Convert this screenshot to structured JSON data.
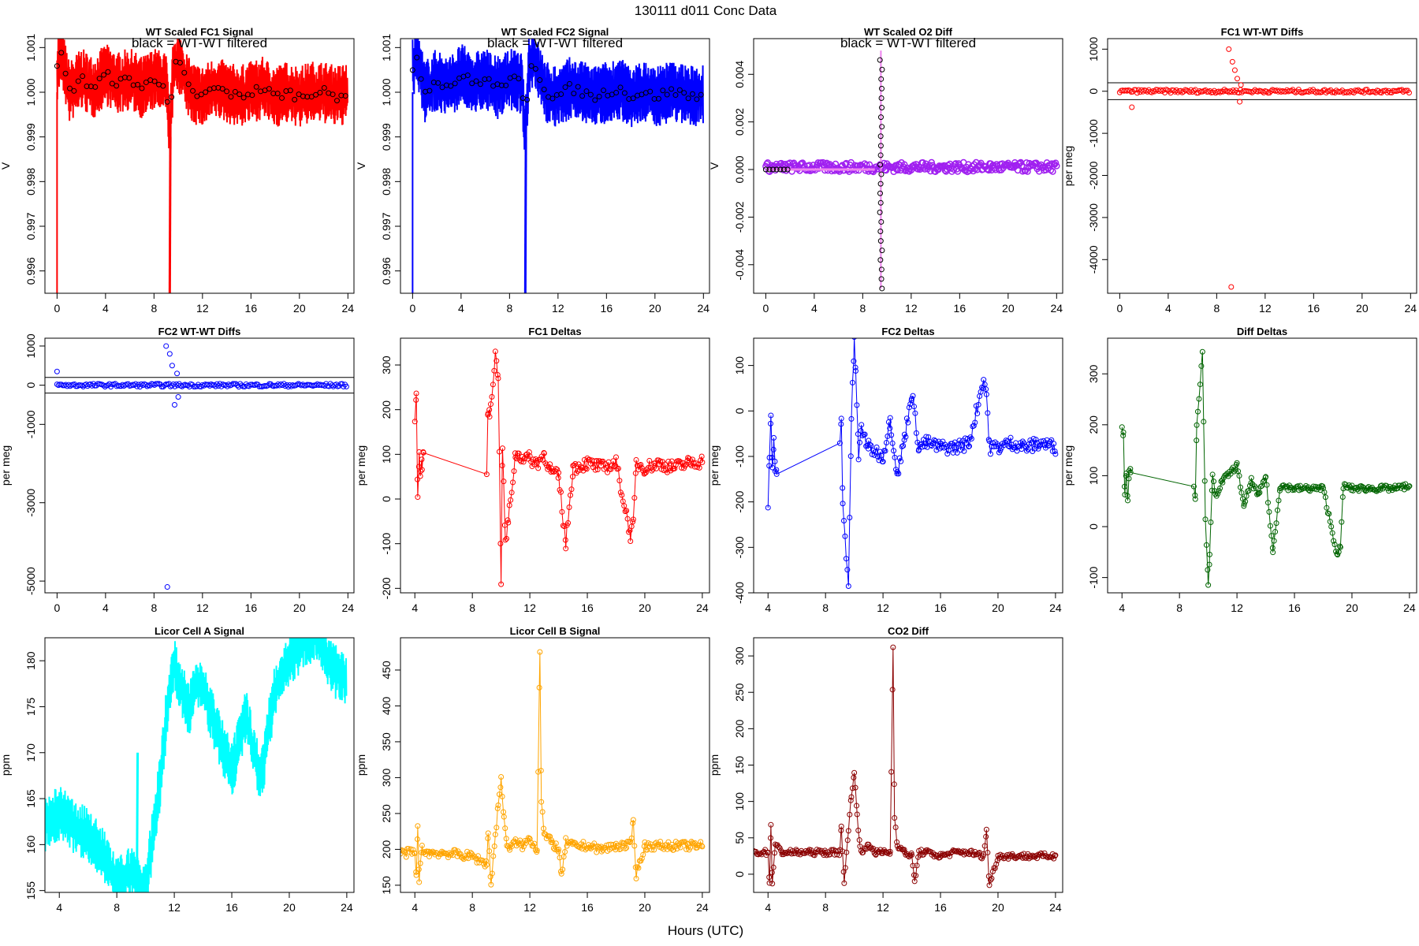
{
  "figure": {
    "main_title": "130111    d011    Conc Data",
    "x_label": "Hours (UTC)"
  },
  "chart_data": [
    {
      "id": "p1",
      "type": "line",
      "title": "WT Scaled FC1 Signal",
      "annotation": "black = WT-WT filtered",
      "ylabel": "V",
      "xlim": [
        -1,
        24.5
      ],
      "ylim": [
        0.9955,
        1.0012
      ],
      "xticks": [
        0,
        4,
        8,
        12,
        16,
        20,
        24
      ],
      "yticks": [
        0.996,
        0.997,
        0.998,
        0.999,
        1.0
      ],
      "ytick_labels": [
        "0.996",
        "0.997",
        "0.998",
        "0.999",
        "1.000"
      ],
      "ytick_extra": [
        1.001
      ],
      "ytick_extra_labels": [
        "1.001"
      ],
      "color": "#ff0000",
      "overlay_color": "#000000",
      "mode": "noise",
      "series": {
        "x": [
          0,
          0.3,
          1,
          2,
          3,
          4,
          5,
          6,
          7,
          8,
          9,
          9.3,
          9.6,
          10,
          11,
          12,
          13,
          14,
          15,
          16,
          17,
          18,
          19,
          20,
          21,
          22,
          23,
          24
        ],
        "y": [
          1.0005,
          1.0009,
          1.0,
          1.0003,
          1.0001,
          1.0004,
          1.0002,
          1.0003,
          1.0001,
          1.0003,
          1.0002,
          0.999,
          1.0006,
          1.0007,
          1.0,
          0.9999,
          1.0001,
          1.0,
          0.9999,
          1.0,
          1.0001,
          0.9999,
          1.0,
          0.9999,
          1.0,
          1.0,
          0.9999,
          1.0
        ],
        "spread": 0.0007,
        "spike_x": 9.3,
        "spike_min": 0.9955
      }
    },
    {
      "id": "p2",
      "type": "line",
      "title": "WT Scaled FC2 Signal",
      "annotation": "black = WT-WT filtered",
      "ylabel": "V",
      "xlim": [
        -1,
        24.5
      ],
      "ylim": [
        0.9955,
        1.0012
      ],
      "xticks": [
        0,
        4,
        8,
        12,
        16,
        20,
        24
      ],
      "yticks": [
        0.996,
        0.997,
        0.998,
        0.999,
        1.0
      ],
      "ytick_labels": [
        "0.996",
        "0.997",
        "0.998",
        "0.999",
        "1.000"
      ],
      "ytick_extra": [
        1.001
      ],
      "ytick_extra_labels": [
        "1.001"
      ],
      "color": "#0000ff",
      "overlay_color": "#000000",
      "mode": "noise",
      "series": {
        "x": [
          0,
          0.3,
          1,
          2,
          3,
          4,
          5,
          6,
          7,
          8,
          9,
          9.3,
          9.6,
          10,
          11,
          12,
          13,
          14,
          15,
          16,
          17,
          18,
          19,
          20,
          21,
          22,
          23,
          24
        ],
        "y": [
          1.0005,
          1.0009,
          1.0,
          1.0003,
          1.0001,
          1.0004,
          1.0002,
          1.0003,
          1.0001,
          1.0003,
          1.0002,
          0.999,
          1.0006,
          1.0007,
          1.0,
          0.9999,
          1.0001,
          1.0,
          0.9999,
          1.0,
          1.0001,
          0.9999,
          1.0,
          0.9999,
          1.0,
          1.0,
          0.9999,
          1.0
        ],
        "spread": 0.0007,
        "spike_x": 9.3,
        "spike_min": 0.9955
      }
    },
    {
      "id": "p3",
      "type": "scatter",
      "title": "WT Scaled O2 Diff",
      "annotation": "black = WT-WT filtered",
      "ylabel": "V",
      "xlim": [
        -1,
        24.5
      ],
      "ylim": [
        -0.0052,
        0.0055
      ],
      "xticks": [
        0,
        4,
        8,
        12,
        16,
        20,
        24
      ],
      "yticks": [
        -0.004,
        -0.002,
        0.0,
        0.002,
        0.004
      ],
      "ytick_labels": [
        "-0.004",
        "-0.002",
        "0.000",
        "0.002",
        "0.004"
      ],
      "color": "#a020f0",
      "overlay_color": "#ee82ee",
      "mode": "band",
      "series": {
        "x": [
          0,
          24
        ],
        "y": [
          0.0001,
          0.0
        ],
        "spread": 0.0002,
        "spike_x": 9.5,
        "spike_min": -0.005,
        "spike_max": 0.005
      }
    },
    {
      "id": "p4",
      "type": "scatter",
      "title": "FC1 WT-WT Diffs",
      "ylabel": "per meg",
      "xlim": [
        -1,
        24.5
      ],
      "ylim": [
        -4800,
        1250
      ],
      "xticks": [
        0,
        4,
        8,
        12,
        16,
        20,
        24
      ],
      "yticks": [
        -4000,
        -3000,
        -2000,
        -1000,
        0,
        1000
      ],
      "ytick_labels": [
        "-4000",
        "-3000",
        "-2000",
        "-1000",
        "0",
        "1000"
      ],
      "color": "#ff0000",
      "mode": "flat",
      "hlines": [
        200,
        -200
      ],
      "series": {
        "center": 0,
        "spread": 40,
        "outliers": [
          [
            1,
            -380
          ],
          [
            9,
            1000
          ],
          [
            9.2,
            -4650
          ],
          [
            9.3,
            700
          ],
          [
            9.5,
            500
          ],
          [
            9.7,
            300
          ],
          [
            9.9,
            -250
          ],
          [
            10,
            150
          ]
        ]
      }
    },
    {
      "id": "p5",
      "type": "scatter",
      "title": "FC2 WT-WT Diffs",
      "ylabel": "per meg",
      "xlim": [
        -1,
        24.5
      ],
      "ylim": [
        -5300,
        1200
      ],
      "xticks": [
        0,
        4,
        8,
        12,
        16,
        20,
        24
      ],
      "yticks": [
        -5000,
        -3000,
        -1000,
        0,
        1000
      ],
      "ytick_labels": [
        "-5000",
        "-3000",
        "-1000",
        "0",
        "1000"
      ],
      "color": "#0000ff",
      "mode": "flat",
      "hlines": [
        200,
        -200
      ],
      "series": {
        "center": 0,
        "spread": 40,
        "outliers": [
          [
            0,
            350
          ],
          [
            9,
            1000
          ],
          [
            9.1,
            -5150
          ],
          [
            9.3,
            800
          ],
          [
            9.5,
            500
          ],
          [
            9.7,
            -500
          ],
          [
            9.9,
            300
          ],
          [
            10,
            -300
          ]
        ]
      }
    },
    {
      "id": "p6",
      "type": "line",
      "title": "FC1 Deltas",
      "ylabel": "per meg",
      "xlim": [
        3,
        24.5
      ],
      "ylim": [
        -210,
        360
      ],
      "xticks": [
        4,
        8,
        12,
        16,
        20,
        24
      ],
      "yticks": [
        -200,
        -100,
        0,
        100,
        200,
        300
      ],
      "ytick_labels": [
        "-200",
        "-100",
        "0",
        "100",
        "200",
        "300"
      ],
      "color": "#ff0000",
      "mode": "deltas",
      "series": {
        "x": [
          4,
          4.1,
          4.2,
          4.3,
          4.4,
          4.5,
          4.6,
          9,
          9.1,
          9.2,
          9.6,
          9.8,
          10,
          10.1,
          10.3,
          10.5,
          11,
          12,
          12.5,
          13,
          13.5,
          14,
          14.5,
          15,
          16,
          17,
          18,
          19,
          19.2,
          19.4,
          20,
          21,
          22,
          23,
          24
        ],
        "y": [
          180,
          230,
          0,
          100,
          50,
          80,
          100,
          70,
          200,
          190,
          320,
          280,
          -180,
          120,
          -100,
          -50,
          100,
          90,
          80,
          100,
          60,
          50,
          -100,
          70,
          80,
          70,
          80,
          -80,
          -60,
          80,
          70,
          80,
          70,
          80,
          85
        ],
        "spread": 15
      }
    },
    {
      "id": "p7",
      "type": "line",
      "title": "FC2 Deltas",
      "ylabel": "per meg",
      "xlim": [
        3,
        24.5
      ],
      "ylim": [
        -400,
        160
      ],
      "xticks": [
        4,
        8,
        12,
        16,
        20,
        24
      ],
      "yticks": [
        -400,
        -300,
        -200,
        -100,
        0,
        100
      ],
      "ytick_labels": [
        "-400",
        "-300",
        "-200",
        "-100",
        "0",
        "100"
      ],
      "color": "#0000ff",
      "mode": "deltas",
      "series": {
        "x": [
          4,
          4.1,
          4.2,
          4.3,
          4.4,
          4.5,
          4.6,
          9,
          9.1,
          9.2,
          9.6,
          9.8,
          10,
          10.1,
          10.3,
          10.5,
          11,
          12,
          12.5,
          13,
          13.5,
          14,
          14.5,
          15,
          16,
          17,
          18,
          19,
          19.2,
          19.4,
          20,
          21,
          22,
          23,
          24
        ],
        "y": [
          -200,
          -100,
          -20,
          -130,
          -60,
          -140,
          -130,
          -80,
          -10,
          -210,
          -380,
          -20,
          150,
          90,
          -100,
          -40,
          -80,
          -100,
          -20,
          -140,
          -60,
          40,
          -80,
          -70,
          -80,
          -80,
          -70,
          70,
          40,
          -80,
          -80,
          -70,
          -80,
          -70,
          -80
        ],
        "spread": 15
      }
    },
    {
      "id": "p8",
      "type": "line",
      "title": "Diff Deltas",
      "ylabel": "per meg",
      "xlim": [
        3,
        24.5
      ],
      "ylim": [
        -130,
        370
      ],
      "xticks": [
        4,
        8,
        12,
        16,
        20,
        24
      ],
      "yticks": [
        -100,
        0,
        100,
        200,
        300
      ],
      "ytick_labels": [
        "-100",
        "0",
        "100",
        "200",
        "300"
      ],
      "color": "#006400",
      "mode": "deltas",
      "series": {
        "x": [
          4,
          4.1,
          4.2,
          4.3,
          4.4,
          4.5,
          4.6,
          9,
          9.1,
          9.2,
          9.6,
          9.8,
          10,
          10.1,
          10.3,
          10.5,
          11,
          12,
          12.5,
          13,
          13.5,
          14,
          14.5,
          15,
          16,
          17,
          18,
          19,
          19.2,
          19.4,
          20,
          21,
          22,
          23,
          24
        ],
        "y": [
          200,
          180,
          60,
          110,
          50,
          110,
          110,
          80,
          60,
          200,
          340,
          20,
          -110,
          -60,
          100,
          60,
          90,
          120,
          40,
          90,
          60,
          100,
          -50,
          80,
          75,
          75,
          75,
          -60,
          -40,
          80,
          75,
          75,
          75,
          75,
          80
        ],
        "spread": 6
      }
    },
    {
      "id": "p9",
      "type": "line",
      "title": "Licor Cell A Signal",
      "ylabel": "ppm",
      "xlim": [
        3,
        24.5
      ],
      "ylim": [
        154.8,
        182.5
      ],
      "xticks": [
        4,
        8,
        12,
        16,
        20,
        24
      ],
      "yticks": [
        155,
        160,
        165,
        170,
        175,
        180
      ],
      "ytick_labels": [
        "155",
        "160",
        "165",
        "170",
        "175",
        "180"
      ],
      "color": "#00ffff",
      "mode": "noise",
      "series": {
        "x": [
          3,
          4,
          5,
          6,
          7,
          8,
          9,
          10,
          11,
          11.5,
          12,
          13,
          13.5,
          14,
          15,
          16,
          17,
          18,
          19,
          20,
          21,
          22,
          23,
          24
        ],
        "y": [
          162,
          163.5,
          162,
          161,
          159,
          155.5,
          157,
          155,
          167,
          175,
          179.5,
          174.5,
          178,
          177,
          172,
          168,
          174,
          167,
          177,
          180,
          182,
          183,
          179,
          178
        ],
        "spread": 3,
        "spike_x": 9.4,
        "spike_max": 170
      }
    },
    {
      "id": "p10",
      "type": "line",
      "title": "Licor Cell B Signal",
      "ylabel": "ppm",
      "xlim": [
        3,
        24.5
      ],
      "ylim": [
        140,
        495
      ],
      "xticks": [
        4,
        8,
        12,
        16,
        20,
        24
      ],
      "yticks": [
        150,
        200,
        250,
        300,
        350,
        400,
        450
      ],
      "ytick_labels": [
        "150",
        "200",
        "250",
        "300",
        "350",
        "400",
        "450"
      ],
      "color": "#ffa500",
      "mode": "deltas",
      "series": {
        "x": [
          3,
          4,
          4.1,
          4.2,
          4.3,
          4.5,
          5,
          6,
          7,
          8,
          9,
          9.1,
          9.3,
          9.6,
          9.8,
          10,
          10.2,
          10.4,
          10.6,
          11,
          11.5,
          12,
          12.5,
          12.7,
          12.8,
          13,
          13.5,
          14,
          14.2,
          14.5,
          15,
          16,
          17,
          18,
          19,
          19.2,
          19.4,
          20,
          21,
          22,
          23,
          24
        ],
        "y": [
          195,
          195,
          160,
          230,
          160,
          200,
          195,
          195,
          193,
          190,
          180,
          225,
          150,
          220,
          260,
          300,
          240,
          210,
          200,
          210,
          205,
          215,
          200,
          480,
          270,
          220,
          210,
          200,
          160,
          210,
          205,
          205,
          200,
          205,
          205,
          240,
          165,
          205,
          205,
          205,
          205,
          205
        ],
        "spread": 6
      }
    },
    {
      "id": "p11",
      "type": "line",
      "title": "CO2 Diff",
      "ylabel": "ppm",
      "xlim": [
        3,
        24.5
      ],
      "ylim": [
        -25,
        325
      ],
      "xticks": [
        4,
        8,
        12,
        16,
        20,
        24
      ],
      "yticks": [
        0,
        50,
        100,
        150,
        200,
        250,
        300
      ],
      "ytick_labels": [
        "0",
        "50",
        "100",
        "150",
        "200",
        "250",
        "300"
      ],
      "color": "#8b0000",
      "mode": "deltas",
      "series": {
        "x": [
          3,
          4,
          4.1,
          4.2,
          4.3,
          4.5,
          5,
          6,
          7,
          8,
          9,
          9.1,
          9.3,
          9.6,
          9.8,
          10,
          10.2,
          10.4,
          10.6,
          11,
          11.5,
          12,
          12.5,
          12.7,
          12.8,
          13,
          13.5,
          14,
          14.2,
          14.5,
          15,
          16,
          17,
          18,
          19,
          19.2,
          19.4,
          20,
          21,
          22,
          23,
          24
        ],
        "y": [
          30,
          30,
          -10,
          65,
          -10,
          40,
          30,
          30,
          30,
          30,
          30,
          65,
          -10,
          60,
          110,
          140,
          80,
          40,
          30,
          40,
          30,
          30,
          30,
          310,
          80,
          40,
          30,
          25,
          -10,
          30,
          30,
          25,
          30,
          30,
          25,
          60,
          -15,
          25,
          25,
          25,
          25,
          25
        ],
        "spread": 4
      }
    }
  ]
}
